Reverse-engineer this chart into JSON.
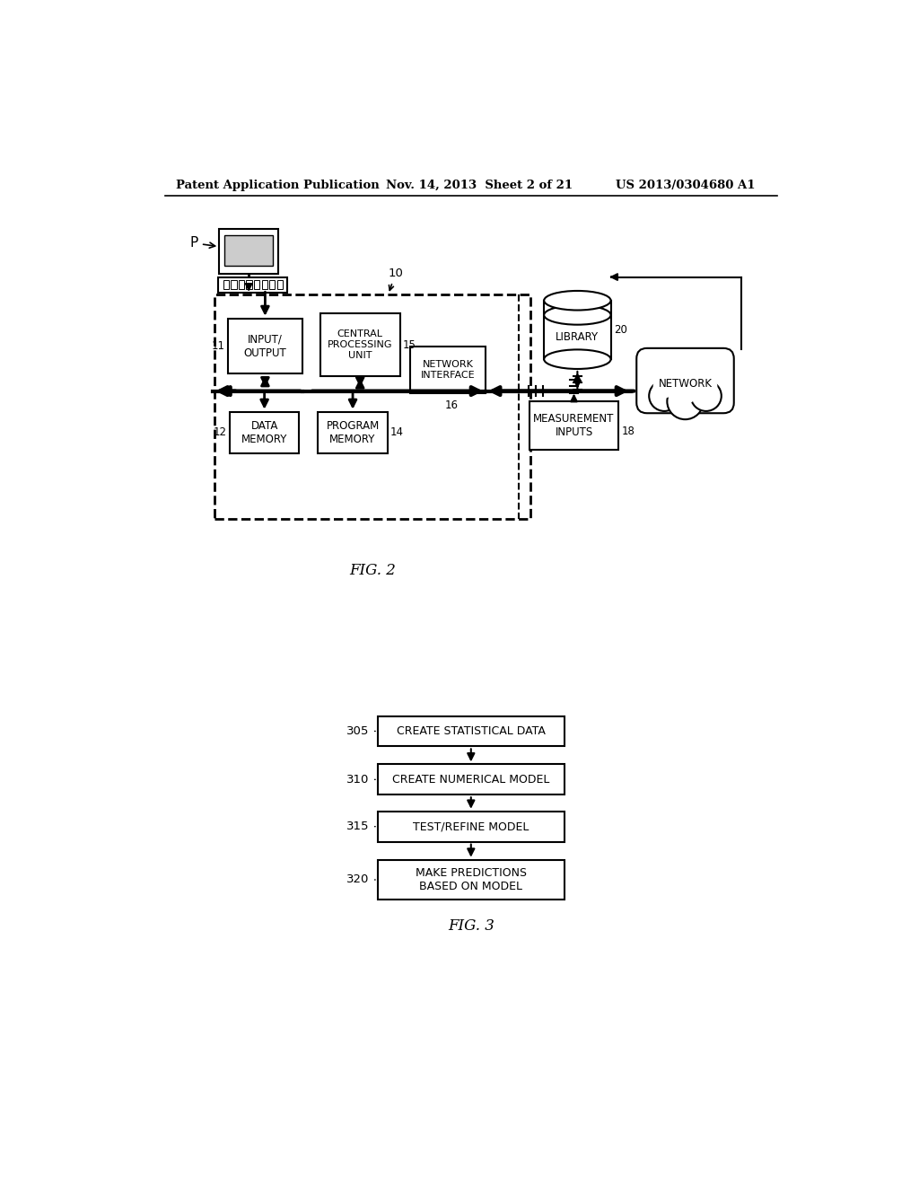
{
  "bg_color": "#ffffff",
  "header_left": "Patent Application Publication",
  "header_mid": "Nov. 14, 2013  Sheet 2 of 21",
  "header_right": "US 2013/0304680 A1",
  "fig2_label": "FIG. 2",
  "fig3_label": "FIG. 3",
  "flowchart_steps": [
    {
      "label": "CREATE STATISTICAL DATA",
      "ref": "305"
    },
    {
      "label": "CREATE NUMERICAL MODEL",
      "ref": "310"
    },
    {
      "label": "TEST/REFINE MODEL",
      "ref": "315"
    },
    {
      "label": "MAKE PREDICTIONS\nBASED ON MODEL",
      "ref": "320"
    }
  ]
}
